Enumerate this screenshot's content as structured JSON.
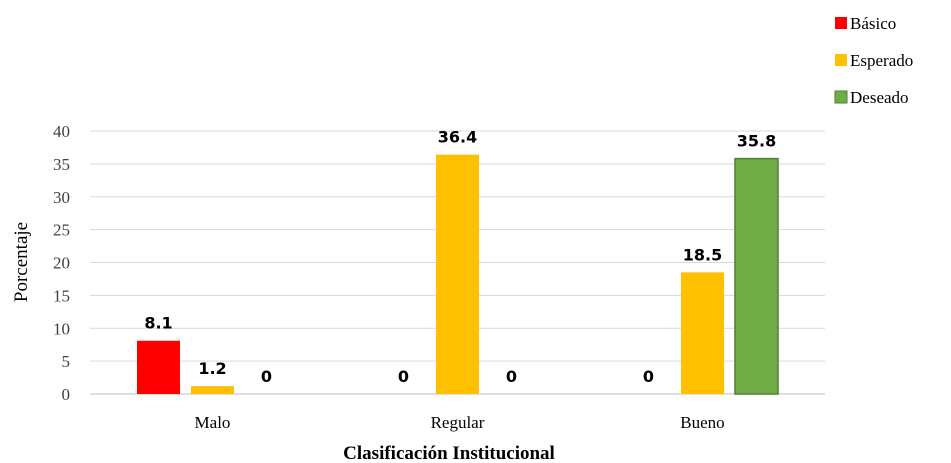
{
  "chart_data": {
    "type": "bar",
    "categories": [
      "Malo",
      "Regular",
      "Bueno"
    ],
    "series": [
      {
        "name": "Básico",
        "values": [
          8.1,
          0,
          0
        ],
        "color": "#ff0000"
      },
      {
        "name": "Esperado",
        "values": [
          1.2,
          36.4,
          18.5
        ],
        "color": "#ffc000"
      },
      {
        "name": "Deseado",
        "values": [
          0,
          0,
          35.8
        ],
        "color": "#70ad47"
      }
    ],
    "data_labels": [
      [
        "8.1",
        "0",
        "0"
      ],
      [
        "1.2",
        "36.4",
        "18.5"
      ],
      [
        "0",
        "0",
        "35.8"
      ]
    ],
    "xlabel": "Clasificación Institucional",
    "ylabel": "Porcentaje",
    "ylim": [
      0,
      40
    ],
    "yticks": [
      0,
      5,
      10,
      15,
      20,
      25,
      30,
      35,
      40
    ],
    "grid": true,
    "legend_position": "top-right"
  }
}
